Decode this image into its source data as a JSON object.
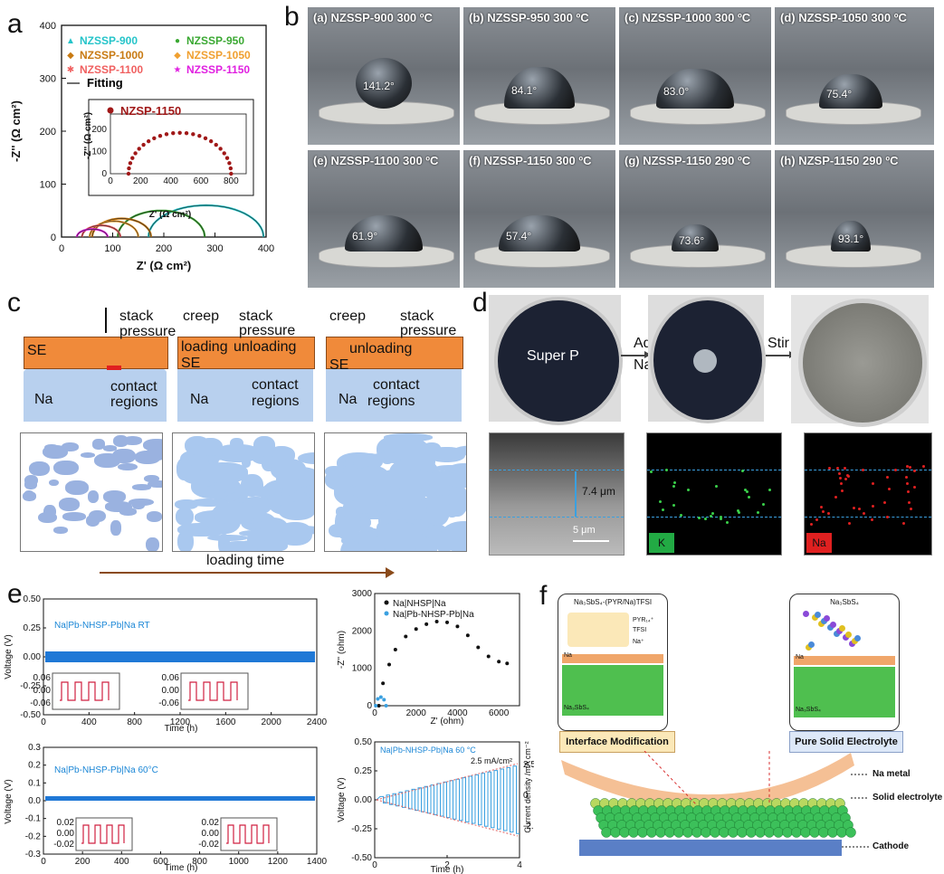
{
  "panels": {
    "a": "a",
    "b": "b",
    "c": "c",
    "d": "d",
    "e": "e",
    "f": "f"
  },
  "panel_a": {
    "legend": [
      {
        "label": "NZSSP-900",
        "color": "#25c4c9",
        "marker": "▲"
      },
      {
        "label": "NZSSP-950",
        "color": "#3aa832",
        "marker": "●"
      },
      {
        "label": "NZSSP-1000",
        "color": "#c87a12",
        "marker": "◆"
      },
      {
        "label": "NZSSP-1050",
        "color": "#f0a030",
        "marker": "◆"
      },
      {
        "label": "NZSSP-1100",
        "color": "#f06060",
        "marker": "✱"
      },
      {
        "label": "NZSSP-1150",
        "color": "#e020e0",
        "marker": "★"
      }
    ],
    "fitting_label": "Fitting",
    "inset_legend": "NZSP-1150",
    "inset_color": "#a01818",
    "xlabel": "Z' (Ω cm²)",
    "ylabel": "-Z'' (Ω cm²)",
    "xticks": [
      "0",
      "100",
      "200",
      "300",
      "400"
    ],
    "yticks": [
      "0",
      "100",
      "200",
      "300",
      "400"
    ],
    "inset_xlabel": "Z' (Ω cm²)",
    "inset_ylabel": "-Z'' (Ω cm²)",
    "inset_xticks": [
      "0",
      "200",
      "400",
      "600",
      "800"
    ],
    "inset_yticks": [
      "0",
      "100",
      "200"
    ]
  },
  "chart_data": [
    {
      "type": "scatter",
      "panel": "a-main",
      "xlim": [
        0,
        400
      ],
      "ylim": [
        0,
        400
      ],
      "series": [
        {
          "name": "NZSSP-900",
          "arc": [
            170,
            395
          ],
          "peak": 60
        },
        {
          "name": "NZSSP-950",
          "arc": [
            110,
            280
          ],
          "peak": 50
        },
        {
          "name": "NZSSP-1000",
          "arc": [
            60,
            175
          ],
          "peak": 35
        },
        {
          "name": "NZSSP-1050",
          "arc": [
            55,
            150
          ],
          "peak": 30
        },
        {
          "name": "NZSSP-1100",
          "arc": [
            40,
            115
          ],
          "peak": 22
        },
        {
          "name": "NZSSP-1150",
          "arc": [
            30,
            90
          ],
          "peak": 15
        }
      ]
    },
    {
      "type": "scatter",
      "panel": "a-inset",
      "xlim": [
        0,
        900
      ],
      "ylim": [
        0,
        270
      ],
      "series": [
        {
          "name": "NZSP-1150",
          "arc": [
            120,
            800
          ],
          "peak": 185
        }
      ]
    },
    {
      "type": "scatter",
      "panel": "e-nyquist",
      "xlim": [
        0,
        7000
      ],
      "ylim": [
        0,
        3000
      ],
      "series": [
        {
          "name": "Na|NHSP|Na",
          "points": [
            [
              200,
              0
            ],
            [
              400,
              600
            ],
            [
              700,
              1100
            ],
            [
              1000,
              1500
            ],
            [
              1500,
              1850
            ],
            [
              2000,
              2050
            ],
            [
              2500,
              2180
            ],
            [
              3000,
              2250
            ],
            [
              3500,
              2230
            ],
            [
              4000,
              2120
            ],
            [
              4500,
              1880
            ],
            [
              5000,
              1560
            ],
            [
              5500,
              1320
            ],
            [
              6000,
              1180
            ],
            [
              6400,
              1130
            ]
          ]
        },
        {
          "name": "Na|Pb-NHSP-Pb|Na",
          "points": [
            [
              50,
              0
            ],
            [
              150,
              180
            ],
            [
              300,
              230
            ],
            [
              450,
              160
            ],
            [
              550,
              0
            ]
          ]
        }
      ]
    }
  ],
  "panel_b": {
    "photos": [
      {
        "caption": "(a) NZSSP-900 300 ºC",
        "angle": "141.2°"
      },
      {
        "caption": "(b) NZSSP-950 300 ºC",
        "angle": "84.1°"
      },
      {
        "caption": "(c) NZSSP-1000 300 ºC",
        "angle": "83.0°"
      },
      {
        "caption": "(d) NZSSP-1050 300 ºC",
        "angle": "75.4°"
      },
      {
        "caption": "(e) NZSSP-1100 300 ºC",
        "angle": "61.9°"
      },
      {
        "caption": "(f) NZSSP-1150 300 ºC",
        "angle": "57.4°"
      },
      {
        "caption": "(g) NZSSP-1150 290 ºC",
        "angle": "73.6°"
      },
      {
        "caption": "(h) NZSP-1150 290 ºC",
        "angle": "93.1°"
      }
    ]
  },
  "panel_c": {
    "stack_pressure": "stack pressure",
    "stack": "stack",
    "pressure": "pressure",
    "creep": "creep",
    "loading": "loading",
    "unloading": "unloading",
    "se": "SE",
    "na": "Na",
    "contact_regions": "contact regions",
    "contact": "contact",
    "regions": "regions",
    "loading_time": "loading time"
  },
  "panel_d": {
    "super_p": "Super P",
    "add": "Add",
    "nak": "NaK",
    "stir": "Stir",
    "thickness": "7.4 μm",
    "scale": "5 μm",
    "k": "K",
    "na": "Na"
  },
  "panel_e": {
    "top_label": "Na|Pb-NHSP-Pb|Na  RT",
    "bottom_label": "Na|Pb-NHSP-Pb|Na 60°C",
    "ylabel": "Voltage (V)",
    "xlabel": "Time (h)",
    "top_yticks": [
      "0.50",
      "0.25",
      "0.00",
      "-0.25",
      "-0.50"
    ],
    "top_xticks": [
      "0",
      "400",
      "800",
      "1200",
      "1600",
      "2000",
      "2400"
    ],
    "bottom_yticks": [
      "0.3",
      "0.2",
      "0.1",
      "0.0",
      "-0.1",
      "-0.2",
      "-0.3"
    ],
    "bottom_xticks": [
      "0",
      "200",
      "400",
      "600",
      "800",
      "1000",
      "1200",
      "1400"
    ],
    "inset_top_ticks": [
      "0.06",
      "0.00",
      "-0.06"
    ],
    "inset_bottom_ticks": [
      "0.02",
      "0.00",
      "-0.02"
    ],
    "nyq_legend": [
      "Na|NHSP|Na",
      "Na|Pb-NHSP-Pb|Na"
    ],
    "nyq_ylabel": "-Z'' (ohm)",
    "nyq_xlabel": "Z' (ohm)",
    "nyq_yticks": [
      "3000",
      "2000",
      "1000",
      "0"
    ],
    "nyq_xticks": [
      "0",
      "2000",
      "4000",
      "6000"
    ],
    "rate_label": "Na|Pb-NHSP-Pb|Na 60 °C",
    "rate_note": "2.5 mA/cm²",
    "rate_ylabel": "Voltage (V)",
    "rate_y2label": "Current density /mA cm⁻²",
    "rate_xlabel": "Time (h)",
    "rate_yticks": [
      "0.50",
      "0.25",
      "0.00",
      "-0.25",
      "-0.50"
    ],
    "rate_y2ticks": [
      "2.5",
      "0",
      "-2.5"
    ],
    "rate_xticks": [
      "0",
      "2",
      "4"
    ]
  },
  "panel_f": {
    "left_title": "Na₃SbS₄-(PYR/Na)TFSI",
    "left_pyr": "PYR₁₄⁺",
    "left_tfsi": "TFSI",
    "left_na": "Na⁺",
    "right_title": "Na₃SbS₄",
    "na_label": "Na",
    "na3sbs4": "Na₃SbS₄",
    "interface_mod": "Interface Modification",
    "pure_se": "Pure Solid Electrolyte",
    "na_metal": "Na metal",
    "solid_electrolyte": "Solid electrolyte",
    "cathode": "Cathode"
  }
}
